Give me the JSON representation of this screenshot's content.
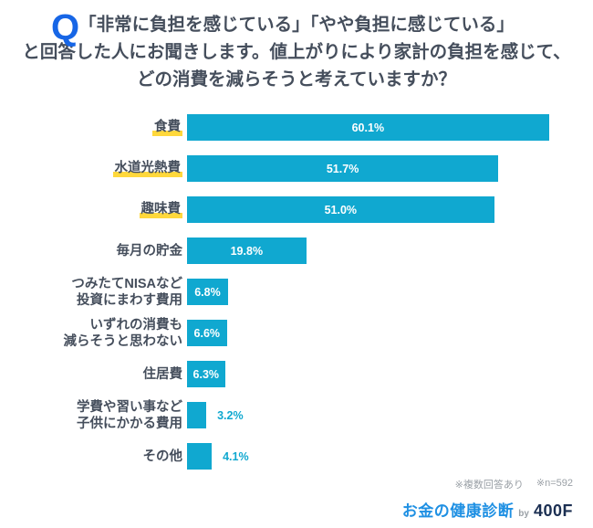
{
  "header": {
    "q_mark": "Q",
    "title_lines": [
      "「非常に負担を感じている」「やや負担に感じている」",
      "と回答した人にお聞きします。値上がりにより家計の負担を感じて、",
      "どの消費を減らそうと考えていますか？"
    ]
  },
  "chart_data": {
    "type": "bar",
    "orientation": "horizontal",
    "unit": "%",
    "xlim": [
      0,
      100
    ],
    "grid": false,
    "axis_visible": false,
    "categories": [
      "食費",
      "水道光熱費",
      "趣味費",
      "毎月の貯金",
      "つみたてNISAなど投資にまわす費用",
      "いずれの消費も減らそうと思わない",
      "住居費",
      "学費や習い事など子供にかかる費用",
      "その他"
    ],
    "values": [
      60.1,
      51.7,
      51.0,
      19.8,
      6.8,
      6.6,
      6.3,
      3.2,
      4.1
    ],
    "items": [
      {
        "label": "食費",
        "value": 60.1,
        "value_label": "60.1%",
        "highlight": true,
        "label_position": "inside"
      },
      {
        "label": "水道光熱費",
        "value": 51.7,
        "value_label": "51.7%",
        "highlight": true,
        "label_position": "inside"
      },
      {
        "label": "趣味費",
        "value": 51.0,
        "value_label": "51.0%",
        "highlight": true,
        "label_position": "inside"
      },
      {
        "label": "毎月の貯金",
        "value": 19.8,
        "value_label": "19.8%",
        "highlight": false,
        "label_position": "inside"
      },
      {
        "label": "つみたてNISAなど\n投資にまわす費用",
        "value": 6.8,
        "value_label": "6.8%",
        "highlight": false,
        "label_position": "inside"
      },
      {
        "label": "いずれの消費も\n減らそうと思わない",
        "value": 6.6,
        "value_label": "6.6%",
        "highlight": false,
        "label_position": "inside"
      },
      {
        "label": "住居費",
        "value": 6.3,
        "value_label": "6.3%",
        "highlight": false,
        "label_position": "inside"
      },
      {
        "label": "学費や習い事など\n子供にかかる費用",
        "value": 3.2,
        "value_label": "3.2%",
        "highlight": false,
        "label_position": "outside"
      },
      {
        "label": "その他",
        "value": 4.1,
        "value_label": "4.1%",
        "highlight": false,
        "label_position": "outside"
      }
    ]
  },
  "footer": {
    "notes": [
      "※複数回答あり",
      "※n=592"
    ],
    "logo": {
      "brand": "お金の健康診断",
      "by": "by",
      "company": "400F"
    }
  },
  "colors": {
    "bar": "#10a8d0",
    "highlight_yellow": "#ffd83c",
    "q_mark_blue": "#1766e6",
    "title_text": "#454e5c",
    "brand_blue": "#1f90e3",
    "company_navy": "#1b2f52",
    "note_gray": "#9aa0a6",
    "value_inside": "#ffffff"
  }
}
